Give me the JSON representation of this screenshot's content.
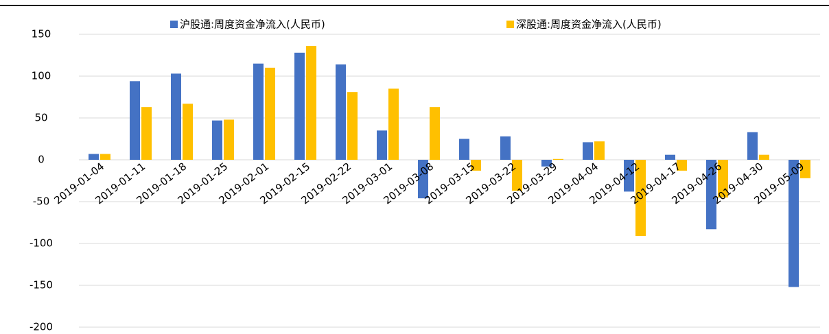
{
  "chart_data": {
    "type": "bar",
    "categories": [
      "2019-01-04",
      "2019-01-11",
      "2019-01-18",
      "2019-01-25",
      "2019-02-01",
      "2019-02-15",
      "2019-02-22",
      "2019-03-01",
      "2019-03-08",
      "2019-03-15",
      "2019-03-22",
      "2019-03-29",
      "2019-04-04",
      "2019-04-12",
      "2019-04-17",
      "2019-04-26",
      "2019-04-30",
      "2019-05-09"
    ],
    "series": [
      {
        "name": "沪股通:周度资金净流入(人民币)",
        "color": "#4472c4",
        "values": [
          7,
          94,
          103,
          47,
          115,
          128,
          114,
          35,
          -46,
          25,
          28,
          -8,
          21,
          -38,
          6,
          -83,
          33,
          -152
        ]
      },
      {
        "name": "深股通:周度资金净流入(人民币)",
        "color": "#ffc000",
        "values": [
          7,
          63,
          67,
          48,
          110,
          136,
          81,
          85,
          63,
          -13,
          -37,
          1,
          22,
          -91,
          -13,
          -45,
          6,
          -22
        ]
      }
    ],
    "ylim": [
      -200,
      150
    ],
    "yticks": [
      -200,
      -150,
      -100,
      -50,
      0,
      50,
      100,
      150
    ],
    "grid": true,
    "legend": "top"
  }
}
